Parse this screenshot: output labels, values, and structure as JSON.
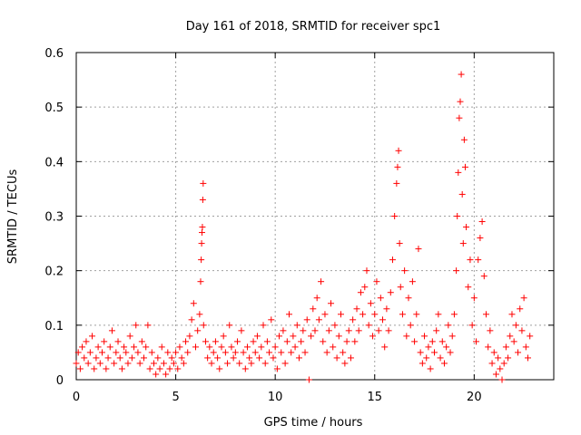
{
  "chart_data": {
    "type": "scatter",
    "title": "Day 161 of 2018, SRMTID for receiver spc1",
    "xlabel": "GPS time / hours",
    "ylabel": "SRMTID / TECUs",
    "xlim": [
      0,
      24
    ],
    "ylim": [
      0,
      0.6
    ],
    "grid": true,
    "marker": "+",
    "marker_color": "#ff0000",
    "x_ticks": [
      0,
      5,
      10,
      15,
      20
    ],
    "x_tick_labels": [
      "0",
      "5",
      "10",
      "15",
      "20"
    ],
    "y_ticks": [
      0,
      0.1,
      0.2,
      0.3,
      0.4,
      0.5,
      0.6
    ],
    "y_tick_labels": [
      "0",
      "0.1",
      "0.2",
      "0.3",
      "0.4",
      "0.5",
      "0.6"
    ],
    "series": [
      {
        "name": "spc1",
        "points": [
          [
            0.0,
            0.03
          ],
          [
            0.1,
            0.05
          ],
          [
            0.2,
            0.02
          ],
          [
            0.3,
            0.06
          ],
          [
            0.4,
            0.04
          ],
          [
            0.5,
            0.07
          ],
          [
            0.6,
            0.03
          ],
          [
            0.7,
            0.05
          ],
          [
            0.8,
            0.08
          ],
          [
            0.9,
            0.02
          ],
          [
            1.0,
            0.04
          ],
          [
            1.1,
            0.06
          ],
          [
            1.2,
            0.03
          ],
          [
            1.3,
            0.05
          ],
          [
            1.4,
            0.07
          ],
          [
            1.5,
            0.02
          ],
          [
            1.6,
            0.04
          ],
          [
            1.7,
            0.06
          ],
          [
            1.8,
            0.09
          ],
          [
            1.9,
            0.03
          ],
          [
            2.0,
            0.05
          ],
          [
            2.1,
            0.07
          ],
          [
            2.2,
            0.04
          ],
          [
            2.3,
            0.02
          ],
          [
            2.4,
            0.06
          ],
          [
            2.5,
            0.05
          ],
          [
            2.6,
            0.03
          ],
          [
            2.7,
            0.08
          ],
          [
            2.8,
            0.04
          ],
          [
            2.9,
            0.06
          ],
          [
            3.0,
            0.1
          ],
          [
            3.1,
            0.05
          ],
          [
            3.2,
            0.03
          ],
          [
            3.3,
            0.07
          ],
          [
            3.4,
            0.04
          ],
          [
            3.5,
            0.06
          ],
          [
            3.6,
            0.1
          ],
          [
            3.7,
            0.02
          ],
          [
            3.8,
            0.05
          ],
          [
            3.9,
            0.03
          ],
          [
            4.0,
            0.01
          ],
          [
            4.1,
            0.04
          ],
          [
            4.2,
            0.02
          ],
          [
            4.3,
            0.06
          ],
          [
            4.4,
            0.03
          ],
          [
            4.5,
            0.01
          ],
          [
            4.6,
            0.05
          ],
          [
            4.7,
            0.02
          ],
          [
            4.8,
            0.04
          ],
          [
            4.9,
            0.03
          ],
          [
            5.0,
            0.05
          ],
          [
            5.1,
            0.02
          ],
          [
            5.2,
            0.06
          ],
          [
            5.3,
            0.04
          ],
          [
            5.4,
            0.03
          ],
          [
            5.5,
            0.07
          ],
          [
            5.6,
            0.05
          ],
          [
            5.7,
            0.08
          ],
          [
            5.8,
            0.11
          ],
          [
            5.9,
            0.14
          ],
          [
            6.0,
            0.06
          ],
          [
            6.1,
            0.09
          ],
          [
            6.2,
            0.12
          ],
          [
            6.25,
            0.18
          ],
          [
            6.28,
            0.22
          ],
          [
            6.3,
            0.25
          ],
          [
            6.32,
            0.27
          ],
          [
            6.34,
            0.28
          ],
          [
            6.36,
            0.33
          ],
          [
            6.38,
            0.36
          ],
          [
            6.4,
            0.1
          ],
          [
            6.5,
            0.07
          ],
          [
            6.6,
            0.04
          ],
          [
            6.7,
            0.06
          ],
          [
            6.8,
            0.03
          ],
          [
            6.9,
            0.05
          ],
          [
            7.0,
            0.07
          ],
          [
            7.1,
            0.04
          ],
          [
            7.2,
            0.02
          ],
          [
            7.3,
            0.06
          ],
          [
            7.4,
            0.08
          ],
          [
            7.5,
            0.05
          ],
          [
            7.6,
            0.03
          ],
          [
            7.7,
            0.1
          ],
          [
            7.8,
            0.06
          ],
          [
            7.9,
            0.04
          ],
          [
            8.0,
            0.05
          ],
          [
            8.1,
            0.07
          ],
          [
            8.2,
            0.03
          ],
          [
            8.3,
            0.09
          ],
          [
            8.4,
            0.05
          ],
          [
            8.5,
            0.02
          ],
          [
            8.6,
            0.06
          ],
          [
            8.7,
            0.04
          ],
          [
            8.8,
            0.03
          ],
          [
            8.9,
            0.07
          ],
          [
            9.0,
            0.05
          ],
          [
            9.1,
            0.08
          ],
          [
            9.2,
            0.04
          ],
          [
            9.3,
            0.06
          ],
          [
            9.4,
            0.1
          ],
          [
            9.5,
            0.03
          ],
          [
            9.6,
            0.07
          ],
          [
            9.7,
            0.05
          ],
          [
            9.8,
            0.11
          ],
          [
            9.9,
            0.04
          ],
          [
            10.0,
            0.06
          ],
          [
            10.1,
            0.02
          ],
          [
            10.2,
            0.08
          ],
          [
            10.3,
            0.05
          ],
          [
            10.4,
            0.09
          ],
          [
            10.5,
            0.03
          ],
          [
            10.6,
            0.07
          ],
          [
            10.7,
            0.12
          ],
          [
            10.8,
            0.05
          ],
          [
            10.9,
            0.08
          ],
          [
            11.0,
            0.06
          ],
          [
            11.1,
            0.1
          ],
          [
            11.2,
            0.04
          ],
          [
            11.3,
            0.07
          ],
          [
            11.4,
            0.09
          ],
          [
            11.5,
            0.05
          ],
          [
            11.6,
            0.11
          ],
          [
            11.7,
            0.0
          ],
          [
            11.8,
            0.08
          ],
          [
            11.9,
            0.13
          ],
          [
            12.0,
            0.09
          ],
          [
            12.1,
            0.15
          ],
          [
            12.2,
            0.11
          ],
          [
            12.3,
            0.18
          ],
          [
            12.4,
            0.07
          ],
          [
            12.5,
            0.12
          ],
          [
            12.6,
            0.05
          ],
          [
            12.7,
            0.09
          ],
          [
            12.8,
            0.14
          ],
          [
            12.9,
            0.06
          ],
          [
            13.0,
            0.1
          ],
          [
            13.1,
            0.04
          ],
          [
            13.2,
            0.08
          ],
          [
            13.3,
            0.12
          ],
          [
            13.4,
            0.05
          ],
          [
            13.5,
            0.03
          ],
          [
            13.6,
            0.07
          ],
          [
            13.7,
            0.09
          ],
          [
            13.8,
            0.04
          ],
          [
            13.9,
            0.11
          ],
          [
            14.0,
            0.07
          ],
          [
            14.1,
            0.13
          ],
          [
            14.2,
            0.09
          ],
          [
            14.3,
            0.16
          ],
          [
            14.4,
            0.12
          ],
          [
            14.5,
            0.17
          ],
          [
            14.6,
            0.2
          ],
          [
            14.7,
            0.1
          ],
          [
            14.8,
            0.14
          ],
          [
            14.9,
            0.08
          ],
          [
            15.0,
            0.12
          ],
          [
            15.1,
            0.18
          ],
          [
            15.2,
            0.09
          ],
          [
            15.3,
            0.15
          ],
          [
            15.4,
            0.11
          ],
          [
            15.5,
            0.06
          ],
          [
            15.6,
            0.13
          ],
          [
            15.7,
            0.09
          ],
          [
            15.8,
            0.16
          ],
          [
            15.9,
            0.22
          ],
          [
            16.0,
            0.3
          ],
          [
            16.1,
            0.36
          ],
          [
            16.15,
            0.39
          ],
          [
            16.2,
            0.42
          ],
          [
            16.25,
            0.25
          ],
          [
            16.3,
            0.17
          ],
          [
            16.4,
            0.12
          ],
          [
            16.5,
            0.2
          ],
          [
            16.6,
            0.08
          ],
          [
            16.7,
            0.15
          ],
          [
            16.8,
            0.1
          ],
          [
            16.9,
            0.18
          ],
          [
            17.0,
            0.07
          ],
          [
            17.1,
            0.12
          ],
          [
            17.2,
            0.24
          ],
          [
            17.3,
            0.05
          ],
          [
            17.4,
            0.03
          ],
          [
            17.5,
            0.08
          ],
          [
            17.6,
            0.04
          ],
          [
            17.7,
            0.06
          ],
          [
            17.8,
            0.02
          ],
          [
            17.9,
            0.07
          ],
          [
            18.0,
            0.05
          ],
          [
            18.1,
            0.09
          ],
          [
            18.2,
            0.12
          ],
          [
            18.3,
            0.04
          ],
          [
            18.4,
            0.07
          ],
          [
            18.5,
            0.03
          ],
          [
            18.6,
            0.06
          ],
          [
            18.7,
            0.1
          ],
          [
            18.8,
            0.05
          ],
          [
            18.9,
            0.08
          ],
          [
            19.0,
            0.12
          ],
          [
            19.1,
            0.2
          ],
          [
            19.15,
            0.3
          ],
          [
            19.2,
            0.38
          ],
          [
            19.25,
            0.48
          ],
          [
            19.3,
            0.51
          ],
          [
            19.35,
            0.56
          ],
          [
            19.4,
            0.34
          ],
          [
            19.45,
            0.25
          ],
          [
            19.5,
            0.44
          ],
          [
            19.55,
            0.39
          ],
          [
            19.6,
            0.28
          ],
          [
            19.7,
            0.17
          ],
          [
            19.8,
            0.22
          ],
          [
            19.9,
            0.1
          ],
          [
            20.0,
            0.15
          ],
          [
            20.1,
            0.07
          ],
          [
            20.2,
            0.22
          ],
          [
            20.3,
            0.26
          ],
          [
            20.4,
            0.29
          ],
          [
            20.5,
            0.19
          ],
          [
            20.6,
            0.12
          ],
          [
            20.7,
            0.06
          ],
          [
            20.8,
            0.09
          ],
          [
            20.9,
            0.03
          ],
          [
            21.0,
            0.05
          ],
          [
            21.1,
            0.01
          ],
          [
            21.2,
            0.04
          ],
          [
            21.3,
            0.02
          ],
          [
            21.4,
            0.0
          ],
          [
            21.5,
            0.03
          ],
          [
            21.6,
            0.06
          ],
          [
            21.7,
            0.04
          ],
          [
            21.8,
            0.08
          ],
          [
            21.9,
            0.12
          ],
          [
            22.0,
            0.07
          ],
          [
            22.1,
            0.1
          ],
          [
            22.2,
            0.05
          ],
          [
            22.3,
            0.13
          ],
          [
            22.4,
            0.09
          ],
          [
            22.5,
            0.15
          ],
          [
            22.6,
            0.06
          ],
          [
            22.7,
            0.04
          ],
          [
            22.8,
            0.08
          ]
        ]
      }
    ]
  }
}
